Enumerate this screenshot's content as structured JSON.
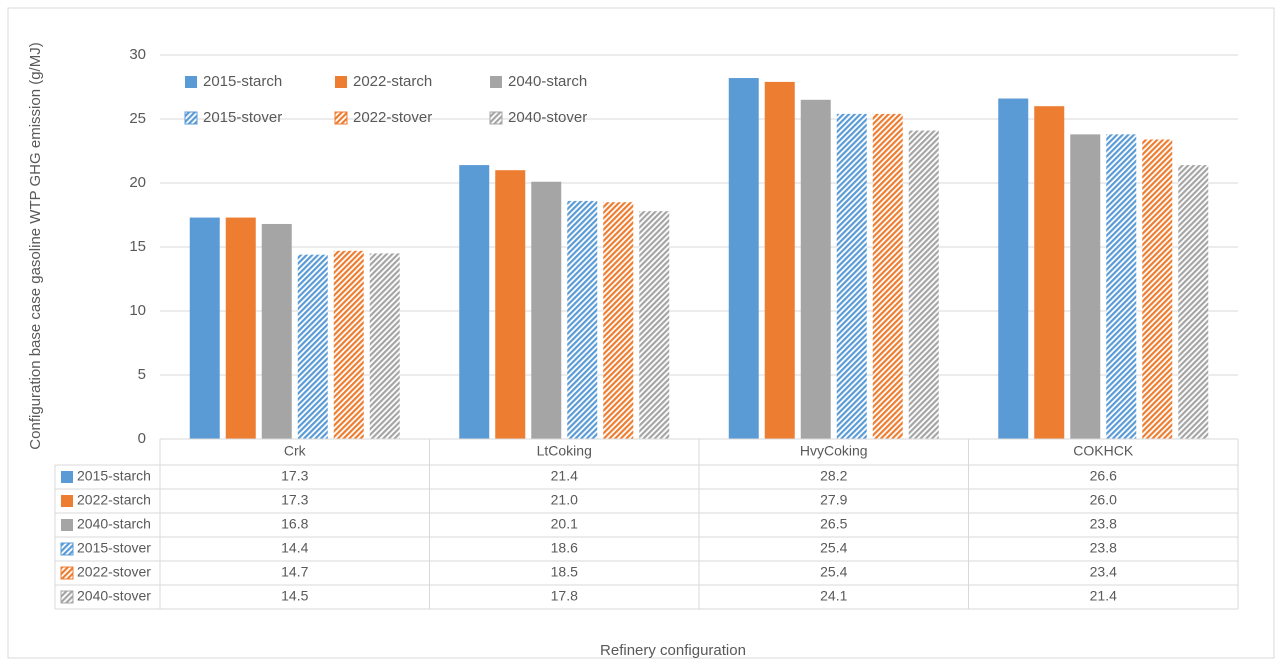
{
  "chart_data": {
    "type": "bar",
    "x_label": "Refinery configuration",
    "y_label": "Configuration base case gasoline WTP GHG emission (g/MJ)",
    "categories": [
      "Crk",
      "LtCoking",
      "HvyCoking",
      "COKHCK"
    ],
    "series": [
      {
        "name": "2015-starch",
        "color": "#5b9bd5",
        "values": [
          17.3,
          21.4,
          28.2,
          26.6
        ],
        "value_labels": [
          "17.3",
          "21.4",
          "28.2",
          "26.6"
        ]
      },
      {
        "name": "2022-starch",
        "color": "#ed7d31",
        "values": [
          17.3,
          21.0,
          27.9,
          26.0
        ],
        "value_labels": [
          "17.3",
          "21.0",
          "27.9",
          "26.0"
        ]
      },
      {
        "name": "2040-starch",
        "color": "#a5a5a5",
        "values": [
          16.8,
          20.1,
          26.5,
          23.8
        ],
        "value_labels": [
          "16.8",
          "20.1",
          "26.5",
          "23.8"
        ]
      },
      {
        "name": "2015-stover",
        "color": "#5b9bd5",
        "pattern": "hatch",
        "values": [
          14.4,
          18.6,
          25.4,
          23.8
        ],
        "value_labels": [
          "14.4",
          "18.6",
          "25.4",
          "23.8"
        ]
      },
      {
        "name": "2022-stover",
        "color": "#ed7d31",
        "pattern": "hatch",
        "values": [
          14.7,
          18.5,
          25.4,
          23.4
        ],
        "value_labels": [
          "14.7",
          "18.5",
          "25.4",
          "23.4"
        ]
      },
      {
        "name": "2040-stover",
        "color": "#a5a5a5",
        "pattern": "hatch",
        "values": [
          14.5,
          17.8,
          24.1,
          21.4
        ],
        "value_labels": [
          "14.5",
          "17.8",
          "24.1",
          "21.4"
        ]
      }
    ],
    "ylim": [
      0,
      30
    ],
    "yticks": [
      0,
      5,
      10,
      15,
      20,
      25,
      30
    ],
    "grid": true,
    "data_table": true
  }
}
